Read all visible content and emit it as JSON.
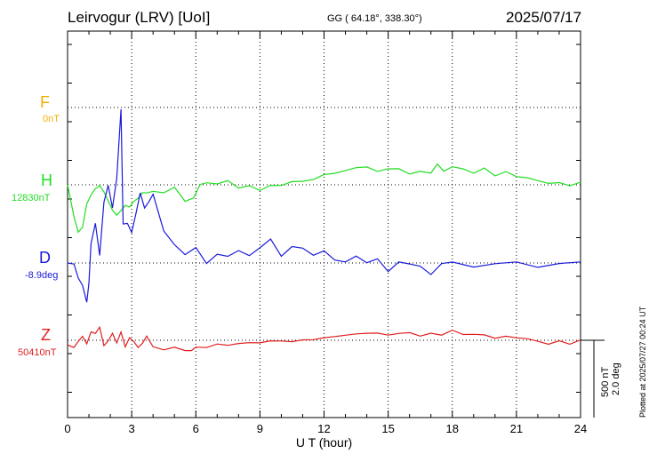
{
  "header": {
    "station": "Leirvogur (LRV)  [UoI]",
    "coords": "GG ( 64.18°, 338.30°)",
    "date": "2025/07/17"
  },
  "channels": [
    {
      "key": "F",
      "name": "F",
      "baseline": "0nT",
      "color": "#f0b000"
    },
    {
      "key": "H",
      "name": "H",
      "baseline": "12830nT",
      "color": "#22dd22"
    },
    {
      "key": "D",
      "name": "D",
      "baseline": "-8.9deg",
      "color": "#1a1adc"
    },
    {
      "key": "Z",
      "name": "Z",
      "baseline": "50410nT",
      "color": "#e01e1e"
    }
  ],
  "scale": {
    "line1": "500 nT",
    "line2": "2.0 deg"
  },
  "plotted_note": "Plotted at 2025/07/27 00:24 UT",
  "chart_data": {
    "type": "line",
    "xlabel": "U T (hour)",
    "xlim": [
      0,
      24
    ],
    "xticks": [
      "0",
      "3",
      "6",
      "9",
      "12",
      "15",
      "18",
      "21",
      "24"
    ],
    "grid": true,
    "series": [
      {
        "name": "H",
        "x": [
          0,
          0.3,
          0.5,
          0.7,
          0.9,
          1.1,
          1.3,
          1.5,
          1.7,
          1.9,
          2.1,
          2.3,
          2.5,
          2.7,
          2.9,
          3.1,
          3.3,
          3.5,
          3.7,
          4.0,
          4.5,
          5.0,
          5.5,
          5.9,
          6.2,
          6.5,
          7.0,
          7.5,
          8.0,
          8.5,
          9.0,
          9.5,
          10.0,
          10.5,
          11.0,
          11.5,
          12.0,
          12.5,
          13.0,
          13.5,
          14.0,
          14.5,
          15.0,
          15.5,
          16.0,
          16.5,
          17.0,
          17.3,
          17.6,
          18.0,
          18.5,
          19.0,
          19.5,
          20.0,
          20.5,
          21.0,
          21.5,
          22.0,
          22.5,
          23.0,
          23.5,
          24.0
        ],
        "y": [
          0,
          -200,
          -310,
          -280,
          -120,
          -60,
          -30,
          -10,
          -40,
          -100,
          -170,
          -200,
          -160,
          -130,
          -150,
          -110,
          -80,
          -50,
          -60,
          -40,
          -50,
          -20,
          -100,
          -90,
          0,
          20,
          0,
          30,
          -20,
          -10,
          -30,
          -10,
          0,
          20,
          20,
          40,
          60,
          80,
          90,
          110,
          120,
          80,
          110,
          100,
          70,
          90,
          70,
          140,
          90,
          110,
          110,
          70,
          110,
          60,
          80,
          60,
          40,
          30,
          10,
          10,
          0,
          10
        ]
      },
      {
        "name": "D",
        "x": [
          0,
          0.3,
          0.5,
          0.7,
          0.9,
          1.0,
          1.1,
          1.3,
          1.5,
          1.7,
          1.9,
          2.1,
          2.3,
          2.5,
          2.6,
          2.8,
          3.0,
          3.2,
          3.4,
          3.6,
          3.8,
          4.0,
          4.5,
          5.0,
          5.5,
          6.0,
          6.5,
          7.0,
          7.5,
          8.0,
          8.5,
          9.0,
          9.5,
          10.0,
          10.5,
          11.0,
          11.5,
          12.0,
          12.5,
          13.0,
          13.5,
          14.0,
          14.5,
          15.0,
          15.5,
          16.0,
          16.5,
          17.0,
          17.5,
          18.0,
          19.0,
          20.0,
          21.0,
          22.0,
          23.0,
          24.0
        ],
        "y": [
          0,
          0,
          -0.4,
          -0.6,
          -1.0,
          -0.5,
          0.5,
          1.0,
          0.2,
          1.6,
          2.0,
          1.4,
          2.2,
          4.0,
          1.0,
          1.0,
          0.8,
          1.3,
          1.8,
          1.4,
          1.6,
          1.8,
          0.8,
          0.5,
          0.2,
          0.4,
          0.0,
          0.2,
          0.2,
          0.3,
          0.2,
          0.4,
          0.6,
          0.2,
          0.4,
          0.4,
          0.2,
          0.3,
          0.1,
          0.0,
          0.2,
          0.0,
          0.1,
          -0.2,
          0.0,
          0.0,
          -0.1,
          -0.3,
          0.0,
          0.0,
          -0.1,
          0.0,
          0.0,
          -0.1,
          0.0,
          0.0
        ]
      },
      {
        "name": "Z",
        "x": [
          0,
          0.3,
          0.5,
          0.7,
          0.9,
          1.1,
          1.3,
          1.5,
          1.7,
          1.9,
          2.1,
          2.3,
          2.5,
          2.7,
          2.9,
          3.1,
          3.3,
          3.5,
          3.7,
          4.0,
          4.5,
          5.0,
          5.5,
          5.8,
          6.0,
          6.5,
          7.0,
          7.5,
          8.0,
          8.5,
          9.0,
          9.5,
          10.0,
          10.5,
          11.0,
          11.5,
          12.0,
          12.5,
          13.0,
          13.5,
          14.0,
          14.5,
          15.0,
          15.5,
          16.0,
          16.5,
          17.0,
          17.5,
          18.0,
          18.5,
          19.0,
          19.5,
          20.0,
          20.5,
          21.0,
          21.5,
          22.0,
          22.5,
          23.0,
          23.5,
          24.0
        ],
        "y": [
          -30,
          -40,
          -10,
          20,
          -20,
          60,
          40,
          80,
          -30,
          0,
          40,
          -20,
          60,
          -40,
          10,
          -10,
          -40,
          -20,
          20,
          -40,
          -60,
          -50,
          -60,
          -70,
          -50,
          -40,
          -30,
          -30,
          -20,
          -20,
          -10,
          -10,
          0,
          -10,
          0,
          10,
          10,
          30,
          30,
          40,
          50,
          40,
          40,
          40,
          50,
          30,
          40,
          40,
          60,
          40,
          40,
          30,
          20,
          20,
          20,
          10,
          -10,
          -20,
          -10,
          -20,
          0
        ]
      }
    ]
  }
}
